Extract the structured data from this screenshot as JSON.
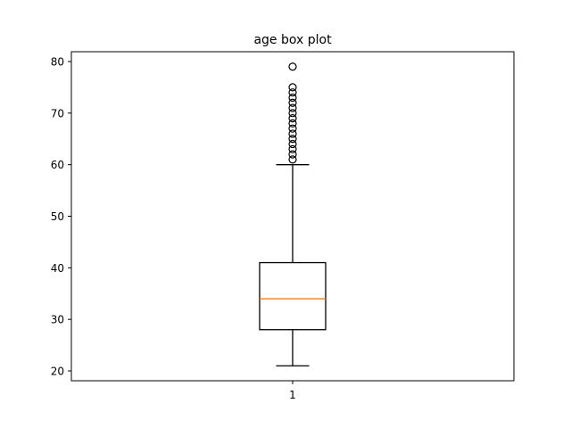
{
  "chart_data": {
    "type": "box",
    "title": "age box plot",
    "xlabel": "",
    "ylabel": "",
    "categories": [
      "1"
    ],
    "ylim": [
      18.1,
      81.9
    ],
    "yticks": [
      20,
      30,
      40,
      50,
      60,
      70,
      80
    ],
    "grid": false,
    "legend": "none",
    "series": [
      {
        "whisker_low": 21,
        "q1": 28,
        "median": 34,
        "q3": 41,
        "whisker_high": 60,
        "outliers": [
          61,
          62,
          63,
          64,
          65,
          66,
          67,
          68,
          69,
          70,
          71,
          72,
          73,
          74,
          75,
          79
        ]
      }
    ],
    "colors": {
      "box": "#000000",
      "median": "#ff7f0e",
      "outlier_edge": "#000000"
    }
  }
}
